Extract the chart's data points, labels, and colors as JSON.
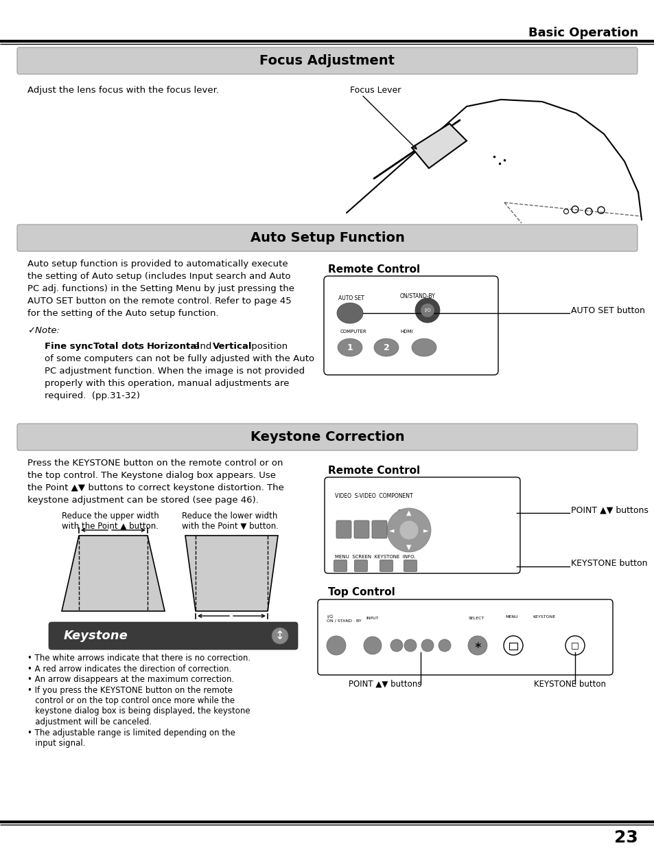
{
  "page_bg": "#ffffff",
  "header_title": "Basic Operation",
  "section1_title": "Focus Adjustment",
  "section2_title": "Auto Setup Function",
  "section3_title": "Keystone Correction",
  "section_header_bg": "#cccccc",
  "focus_text": "Adjust the lens focus with the focus lever.",
  "focus_lever_label": "Focus Lever",
  "auto_text_lines": [
    "Auto setup function is provided to automatically execute",
    "the setting of Auto setup (includes Input search and Auto",
    "PC adj. functions) in the Setting Menu by just pressing the",
    "AUTO SET button on the remote control. Refer to page 45",
    "for the setting of the Auto setup function."
  ],
  "note_label": "✓Note:",
  "note_line0_parts": [
    {
      "text": "Fine sync",
      "bold": true
    },
    {
      "text": ", ",
      "bold": false
    },
    {
      "text": "Total dots",
      "bold": true
    },
    {
      "text": ", ",
      "bold": false
    },
    {
      "text": "Horizontal",
      "bold": true
    },
    {
      "text": " and ",
      "bold": false
    },
    {
      "text": "Vertical",
      "bold": true
    },
    {
      "text": " position",
      "bold": false
    }
  ],
  "note_text_lines": [
    "of some computers can not be fully adjusted with the Auto",
    "PC adjustment function. When the image is not provided",
    "properly with this operation, manual adjustments are",
    "required.  (pp.31-32)"
  ],
  "remote_control_label1": "Remote Control",
  "auto_set_button_label": "AUTO SET button",
  "keystone_text_lines": [
    "Press the KEYSTONE button on the remote control or on",
    "the top control. The Keystone dialog box appears. Use",
    "the Point ▲▼ buttons to correct keystone distortion. The",
    "keystone adjustment can be stored (see page 46)."
  ],
  "remote_control_label2": "Remote Control",
  "point_buttons_label": "POINT ▲▼ buttons",
  "keystone_button_label1": "KEYSTONE button",
  "top_control_label": "Top Control",
  "point_buttons_label2": "POINT ▲▼ buttons",
  "keystone_button_label2": "KEYSTONE button",
  "bullet_points": [
    "• The white arrows indicate that there is no correction.",
    "• A red arrow indicates the direction of correction.",
    "• An arrow disappears at the maximum correction.",
    "• If you press the KEYSTONE button on the remote",
    "   control or on the top control once more while the",
    "   keystone dialog box is being displayed, the keystone",
    "   adjustment will be canceled.",
    "• The adjustable range is limited depending on the",
    "   input signal."
  ],
  "page_number": "23",
  "keystone_bar_bg": "#3a3a3a",
  "keystone_bar_text": "Keystone"
}
